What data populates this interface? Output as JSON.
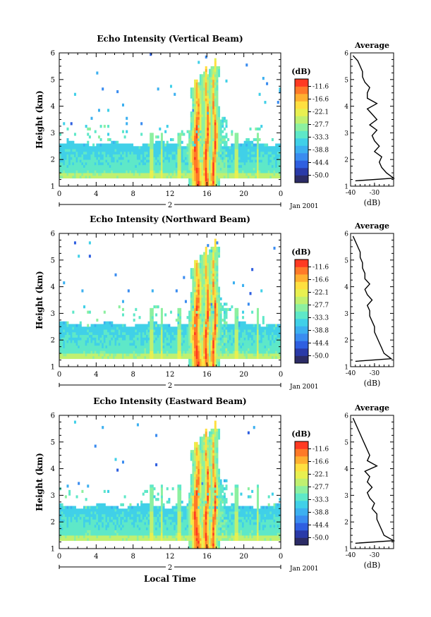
{
  "figure": {
    "xlabel": "Local Time",
    "height_label": "Height (km)",
    "date_label": "Jan 2001",
    "day_label": "2",
    "cbar_title": "(dB)",
    "avg_title": "Average",
    "avg_xlabel": "(dB)"
  },
  "chart_data": [
    {
      "type": "heatmap",
      "title": "Echo Intensity (Vertical Beam)",
      "xlabel": "",
      "ylabel": "Height (km)",
      "xlim": [
        0,
        24
      ],
      "ylim": [
        1,
        6
      ],
      "xticks": [
        "0",
        "4",
        "8",
        "12",
        "16",
        "20",
        "0"
      ],
      "yticks": [
        "1",
        "2",
        "3",
        "4",
        "5",
        "6"
      ],
      "colorbar": {
        "title": "(dB)",
        "ticks": [
          "-11.6",
          "-16.6",
          "-22.1",
          "-27.7",
          "-33.3",
          "-38.8",
          "-44.4",
          "-50.0"
        ],
        "range": [
          -55.5,
          -8.3
        ]
      },
      "features": {
        "main_layer_top_km": 2.6,
        "main_layer_bottom_km": 1.3,
        "convection_start_h": 14.2,
        "convection_end_h": 17.5,
        "convection_top_km": 5.8
      },
      "average_profile": {
        "title": "Average",
        "xlabel": "(dB)",
        "xticks": [
          "-40",
          "-30"
        ],
        "xlim": [
          -40,
          -22
        ],
        "height": [
          1.2,
          1.3,
          1.5,
          1.7,
          1.9,
          2.1,
          2.3,
          2.5,
          2.7,
          2.9,
          3.1,
          3.3,
          3.5,
          3.7,
          3.9,
          4.1,
          4.3,
          4.5,
          4.7,
          4.9,
          5.1,
          5.3,
          5.5,
          5.7,
          5.9
        ],
        "values": [
          -38,
          -22,
          -25,
          -27,
          -28,
          -27,
          -30,
          -28,
          -30,
          -31,
          -29,
          -32,
          -29,
          -31,
          -33,
          -29,
          -33,
          -33,
          -32,
          -34,
          -35,
          -35,
          -36,
          -37,
          -39
        ]
      }
    },
    {
      "type": "heatmap",
      "title": "Echo Intensity (Northward Beam)",
      "xlabel": "",
      "ylabel": "Height (km)",
      "xlim": [
        0,
        24
      ],
      "ylim": [
        1,
        6
      ],
      "xticks": [
        "0",
        "4",
        "8",
        "12",
        "16",
        "20",
        "0"
      ],
      "yticks": [
        "1",
        "2",
        "3",
        "4",
        "5",
        "6"
      ],
      "colorbar": {
        "title": "(dB)",
        "ticks": [
          "-11.6",
          "-16.6",
          "-22.1",
          "-27.7",
          "-33.3",
          "-38.8",
          "-44.4",
          "-50.0"
        ],
        "range": [
          -55.5,
          -8.3
        ]
      },
      "features": {
        "main_layer_top_km": 2.6,
        "main_layer_bottom_km": 1.3,
        "convection_start_h": 14.2,
        "convection_end_h": 17.5,
        "convection_top_km": 5.8
      },
      "average_profile": {
        "title": "Average",
        "xlabel": "(dB)",
        "xticks": [
          "-40",
          "-30"
        ],
        "xlim": [
          -40,
          -22
        ],
        "height": [
          1.2,
          1.3,
          1.5,
          1.7,
          1.9,
          2.1,
          2.3,
          2.5,
          2.7,
          2.9,
          3.1,
          3.3,
          3.5,
          3.7,
          3.9,
          4.1,
          4.3,
          4.5,
          4.7,
          4.9,
          5.1,
          5.3,
          5.5,
          5.7,
          5.9
        ],
        "values": [
          -38,
          -23,
          -26,
          -27,
          -28,
          -29,
          -30,
          -30,
          -31,
          -32,
          -32,
          -33,
          -31,
          -33,
          -34,
          -32,
          -34,
          -34,
          -35,
          -35,
          -36,
          -36,
          -37,
          -38,
          -39
        ]
      }
    },
    {
      "type": "heatmap",
      "title": "Echo Intensity (Eastward Beam)",
      "xlabel": "Local Time",
      "ylabel": "Height (km)",
      "xlim": [
        0,
        24
      ],
      "ylim": [
        1,
        6
      ],
      "xticks": [
        "0",
        "4",
        "8",
        "12",
        "16",
        "20",
        "0"
      ],
      "yticks": [
        "1",
        "2",
        "3",
        "4",
        "5",
        "6"
      ],
      "colorbar": {
        "title": "(dB)",
        "ticks": [
          "-11.6",
          "-16.6",
          "-22.1",
          "-27.7",
          "-33.3",
          "-38.8",
          "-44.4",
          "-50.0"
        ],
        "range": [
          -55.5,
          -8.3
        ]
      },
      "features": {
        "main_layer_top_km": 2.6,
        "main_layer_bottom_km": 1.3,
        "convection_start_h": 14.2,
        "convection_end_h": 17.5,
        "convection_top_km": 5.8
      },
      "average_profile": {
        "title": "Average",
        "xlabel": "(dB)",
        "xticks": [
          "-40",
          "-30"
        ],
        "xlim": [
          -40,
          -22
        ],
        "height": [
          1.2,
          1.3,
          1.5,
          1.7,
          1.9,
          2.1,
          2.3,
          2.5,
          2.7,
          2.9,
          3.1,
          3.3,
          3.5,
          3.7,
          3.9,
          4.1,
          4.3,
          4.5,
          4.7,
          4.9,
          5.1,
          5.3,
          5.5,
          5.7,
          5.9
        ],
        "values": [
          -38,
          -22,
          -26,
          -27,
          -28,
          -29,
          -29,
          -31,
          -30,
          -32,
          -33,
          -31,
          -33,
          -32,
          -34,
          -29,
          -33,
          -32,
          -33,
          -34,
          -35,
          -36,
          -37,
          -38,
          -39
        ]
      }
    }
  ],
  "colors": {
    "palette": [
      "#2c2c66",
      "#2a3aa8",
      "#2f5fe0",
      "#3a8cf0",
      "#3cb0f0",
      "#40d0e8",
      "#5ee8c8",
      "#8cf0a0",
      "#c0f070",
      "#e8f050",
      "#ffe040",
      "#ffb030",
      "#ff7a28",
      "#ff3a22"
    ]
  }
}
